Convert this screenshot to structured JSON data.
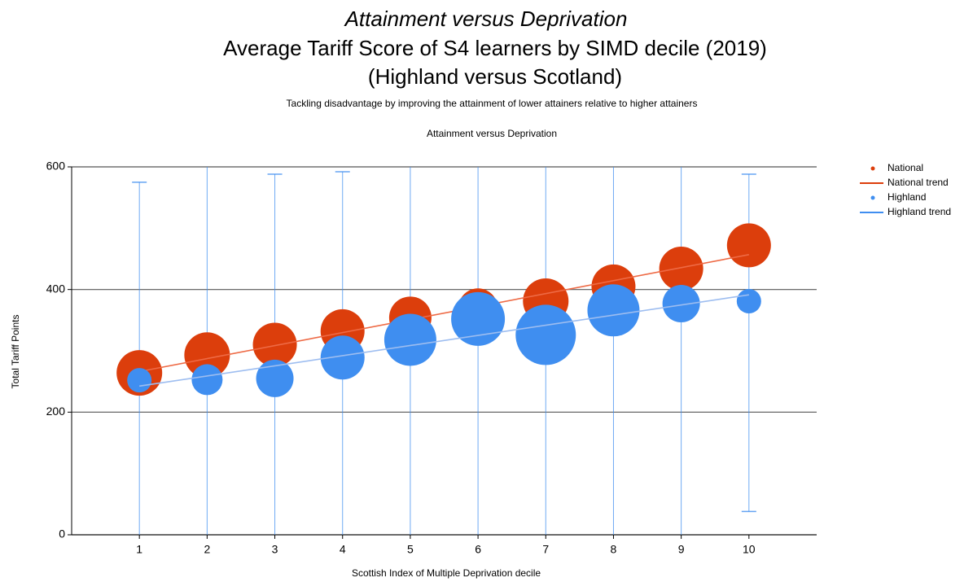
{
  "chart_data": {
    "type": "bubble",
    "title": "Attainment versus Deprivation",
    "subtitle": [
      "Average Tariff Score of S4 learners by SIMD decile (2019)",
      "(Highland versus Scotland)"
    ],
    "caption": "Tackling disadvantage by improving the attainment of lower attainers relative to higher attainers",
    "inner_title": "Attainment versus Deprivation",
    "x_label": "Scottish Index of Multiple Deprivation decile",
    "y_label": "Total Tariff Points",
    "x": [
      1,
      2,
      3,
      4,
      5,
      6,
      7,
      8,
      9,
      10
    ],
    "xlim": [
      0,
      11
    ],
    "xticks": [
      1,
      2,
      3,
      4,
      5,
      6,
      7,
      8,
      9,
      10
    ],
    "ylim": [
      0,
      600
    ],
    "yticks": [
      0,
      200,
      400,
      600
    ],
    "grid": true,
    "legend": "right",
    "series": [
      {
        "name": "National",
        "color": "#dc3e0c",
        "trend_name": "National trend",
        "trend_color": "#ee6a45",
        "values": [
          264,
          293,
          310,
          332,
          354,
          370,
          381,
          405,
          434,
          472
        ],
        "sizes": [
          28,
          28,
          27,
          27,
          26,
          24,
          28,
          27,
          27,
          27
        ]
      },
      {
        "name": "Highland",
        "color": "#3f8ef0",
        "trend_name": "Highland trend",
        "trend_color": "#9dbdf0",
        "values": [
          252,
          253,
          255,
          289,
          318,
          352,
          326,
          366,
          377,
          381
        ],
        "sizes": [
          15,
          19,
          23,
          27,
          32,
          33,
          37,
          32,
          23,
          15
        ],
        "upper": [
          575,
          null,
          588,
          592,
          null,
          null,
          null,
          null,
          null,
          588
        ],
        "lower": [
          null,
          null,
          null,
          null,
          null,
          null,
          null,
          null,
          null,
          38
        ]
      }
    ]
  }
}
